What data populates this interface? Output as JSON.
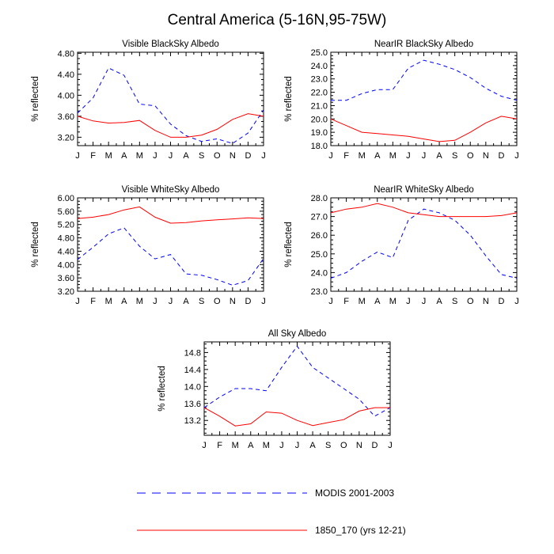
{
  "figure": {
    "title": "Central America (5-16N,95-75W)"
  },
  "legend": {
    "items": [
      {
        "label": "MODIS 2001-2003",
        "color": "#0000ff",
        "dash": "dashed"
      },
      {
        "label": "1850_170 (yrs 12-21)",
        "color": "#ff0000",
        "dash": "solid"
      }
    ]
  },
  "chart_data": [
    {
      "type": "line",
      "title": "Visible BlackSky Albedo",
      "xlabel": "",
      "ylabel": "% reflected",
      "categories": [
        "J",
        "F",
        "M",
        "A",
        "M",
        "J",
        "J",
        "A",
        "S",
        "O",
        "N",
        "D",
        "J"
      ],
      "yticks": [
        "3.20",
        "3.60",
        "4.00",
        "4.40",
        "4.80"
      ],
      "ylim": [
        3.04,
        4.82
      ],
      "series": [
        {
          "name": "MODIS 2001-2003",
          "color": "#0000ff",
          "dash": "dashed",
          "values": [
            3.66,
            3.95,
            4.52,
            4.38,
            3.83,
            3.8,
            3.45,
            3.23,
            3.12,
            3.17,
            3.08,
            3.28,
            3.72
          ]
        },
        {
          "name": "1850_170 (yrs 12-21)",
          "color": "#ff0000",
          "dash": "solid",
          "values": [
            3.6,
            3.51,
            3.47,
            3.48,
            3.52,
            3.33,
            3.2,
            3.2,
            3.24,
            3.35,
            3.54,
            3.65,
            3.6
          ]
        }
      ]
    },
    {
      "type": "line",
      "title": "NearIR BlackSky Albedo",
      "xlabel": "",
      "ylabel": "% reflected",
      "categories": [
        "J",
        "F",
        "M",
        "A",
        "M",
        "J",
        "J",
        "A",
        "S",
        "O",
        "N",
        "D",
        "J"
      ],
      "yticks": [
        "18.0",
        "19.0",
        "20.0",
        "21.0",
        "22.0",
        "23.0",
        "24.0",
        "25.0"
      ],
      "ylim": [
        18.0,
        25.0
      ],
      "series": [
        {
          "name": "MODIS 2001-2003",
          "color": "#0000ff",
          "dash": "dashed",
          "values": [
            21.4,
            21.4,
            21.9,
            22.2,
            22.2,
            23.8,
            24.4,
            24.1,
            23.7,
            23.1,
            22.3,
            21.7,
            21.4
          ]
        },
        {
          "name": "1850_170 (yrs 12-21)",
          "color": "#ff0000",
          "dash": "solid",
          "values": [
            20.0,
            19.5,
            19.0,
            18.9,
            18.8,
            18.7,
            18.5,
            18.3,
            18.4,
            19.0,
            19.7,
            20.2,
            20.0
          ]
        }
      ]
    },
    {
      "type": "line",
      "title": "Visible WhiteSky Albedo",
      "xlabel": "",
      "ylabel": "% reflected",
      "categories": [
        "J",
        "F",
        "M",
        "A",
        "M",
        "J",
        "J",
        "A",
        "S",
        "O",
        "N",
        "D",
        "J"
      ],
      "yticks": [
        "3.20",
        "3.60",
        "4.00",
        "4.40",
        "4.80",
        "5.20",
        "5.60",
        "6.00"
      ],
      "ylim": [
        3.2,
        6.0
      ],
      "series": [
        {
          "name": "MODIS 2001-2003",
          "color": "#0000ff",
          "dash": "dashed",
          "values": [
            4.15,
            4.52,
            4.92,
            5.1,
            4.55,
            4.17,
            4.3,
            3.72,
            3.68,
            3.55,
            3.38,
            3.52,
            4.18
          ]
        },
        {
          "name": "1850_170 (yrs 12-21)",
          "color": "#ff0000",
          "dash": "solid",
          "values": [
            5.38,
            5.42,
            5.5,
            5.64,
            5.73,
            5.42,
            5.24,
            5.26,
            5.31,
            5.34,
            5.37,
            5.4,
            5.38
          ]
        }
      ]
    },
    {
      "type": "line",
      "title": "NearIR WhiteSky Albedo",
      "xlabel": "",
      "ylabel": "% reflected",
      "categories": [
        "J",
        "F",
        "M",
        "A",
        "M",
        "J",
        "J",
        "A",
        "S",
        "O",
        "N",
        "D",
        "J"
      ],
      "yticks": [
        "23.0",
        "24.0",
        "25.0",
        "26.0",
        "27.0",
        "28.0"
      ],
      "ylim": [
        23.0,
        28.0
      ],
      "series": [
        {
          "name": "MODIS 2001-2003",
          "color": "#0000ff",
          "dash": "dashed",
          "values": [
            23.7,
            24.0,
            24.6,
            25.1,
            24.8,
            26.8,
            27.4,
            27.2,
            26.8,
            26.0,
            24.9,
            23.9,
            23.7
          ]
        },
        {
          "name": "1850_170 (yrs 12-21)",
          "color": "#ff0000",
          "dash": "solid",
          "values": [
            27.2,
            27.4,
            27.5,
            27.7,
            27.5,
            27.2,
            27.1,
            27.0,
            27.0,
            27.0,
            27.0,
            27.05,
            27.2
          ]
        }
      ]
    },
    {
      "type": "line",
      "title": "All Sky Albedo",
      "xlabel": "",
      "ylabel": "% reflected",
      "categories": [
        "J",
        "F",
        "M",
        "A",
        "M",
        "J",
        "J",
        "A",
        "S",
        "O",
        "N",
        "D",
        "J"
      ],
      "yticks": [
        "13.2",
        "13.6",
        "14.0",
        "14.4",
        "14.8"
      ],
      "ylim": [
        12.85,
        15.05
      ],
      "series": [
        {
          "name": "MODIS 2001-2003",
          "color": "#0000ff",
          "dash": "dashed",
          "values": [
            13.5,
            13.75,
            13.95,
            13.95,
            13.9,
            14.45,
            14.95,
            14.45,
            14.2,
            13.95,
            13.7,
            13.3,
            13.5
          ]
        },
        {
          "name": "1850_170 (yrs 12-21)",
          "color": "#ff0000",
          "dash": "solid",
          "values": [
            13.5,
            13.3,
            13.07,
            13.12,
            13.4,
            13.37,
            13.2,
            13.08,
            13.15,
            13.22,
            13.42,
            13.5,
            13.5
          ]
        }
      ]
    }
  ]
}
